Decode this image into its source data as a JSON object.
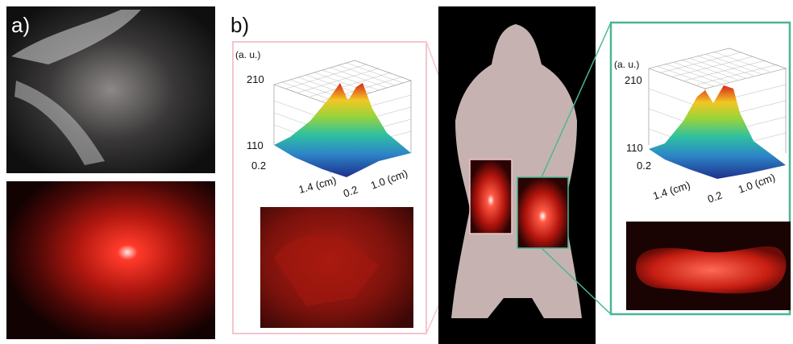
{
  "panel_a": {
    "label": "a)"
  },
  "panel_b": {
    "label": "b)"
  },
  "plot_left": {
    "z_unit": "(a. u.)",
    "z_ticks": [
      "210",
      "110"
    ],
    "x_ticks": [
      "0.2",
      "1.4 (cm)"
    ],
    "y_ticks": [
      "0.2",
      "1.0 (cm)"
    ]
  },
  "plot_right": {
    "z_unit": "(a. u.)",
    "z_ticks": [
      "210",
      "110"
    ],
    "x_ticks": [
      "0.2",
      "1.4 (cm)"
    ],
    "y_ticks": [
      "0.2",
      "1.0 (cm)"
    ]
  },
  "colors": {
    "pink_frame": "#f2c6cc",
    "teal_frame": "#4bb596",
    "fluorescence": "#ff2a1a"
  }
}
